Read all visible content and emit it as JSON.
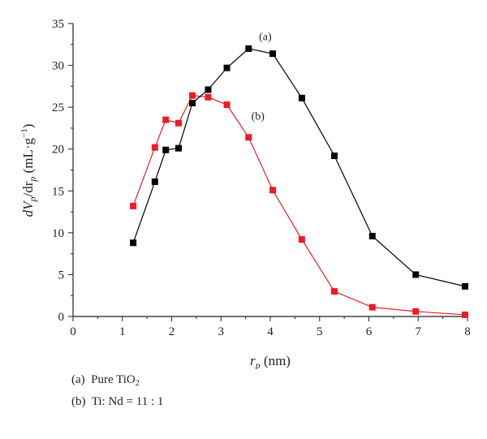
{
  "chart_data": {
    "type": "line",
    "xlabel": {
      "main": "r",
      "sub": "p",
      "unit": " (nm)"
    },
    "ylabel": {
      "d": "d",
      "v": "V",
      "sub1": "p",
      "slash": "/dr",
      "sub2": "p",
      "unit": " (mL·g",
      "exp": "−1",
      "close": ")"
    },
    "xlim": [
      0,
      8
    ],
    "ylim": [
      0,
      35
    ],
    "xticks": [
      0,
      1,
      2,
      3,
      4,
      5,
      6,
      7,
      8
    ],
    "yticks": [
      0,
      5,
      10,
      15,
      20,
      25,
      30,
      35
    ],
    "grid": false,
    "series": [
      {
        "name": "(a)",
        "color": "#000000",
        "marker": "square",
        "x": [
          1.22,
          1.66,
          1.88,
          2.14,
          2.42,
          2.74,
          3.12,
          3.56,
          4.05,
          4.64,
          5.3,
          6.07,
          6.95,
          7.95
        ],
        "y": [
          8.8,
          16.1,
          19.9,
          20.1,
          25.5,
          27.1,
          29.7,
          32.0,
          31.4,
          26.1,
          19.2,
          9.6,
          5.0,
          3.6
        ]
      },
      {
        "name": "(b)",
        "color": "#ed1c24",
        "marker": "square",
        "x": [
          1.22,
          1.66,
          1.88,
          2.14,
          2.42,
          2.74,
          3.12,
          3.56,
          4.05,
          4.64,
          5.3,
          6.07,
          6.95,
          7.95
        ],
        "y": [
          13.2,
          20.2,
          23.5,
          23.1,
          26.4,
          26.2,
          25.3,
          21.4,
          15.1,
          9.2,
          3.0,
          1.1,
          0.6,
          0.2
        ]
      }
    ],
    "series_labels": [
      {
        "text": "(a)",
        "x": 3.9,
        "y": 33.0
      },
      {
        "text": "(b)",
        "x": 3.75,
        "y": 23.5
      }
    ],
    "legend_entries": [
      {
        "tag": "(a)",
        "text": "Pure TiO",
        "sub": "2"
      },
      {
        "tag": "(b)",
        "text": "Ti: Nd = 11 : 1",
        "sub": ""
      }
    ]
  }
}
